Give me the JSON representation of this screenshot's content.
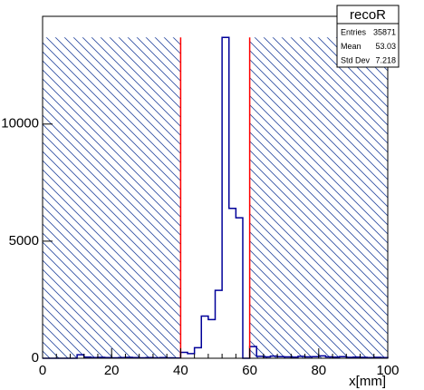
{
  "chart_data": {
    "type": "histogram",
    "bins": [
      0,
      2,
      4,
      6,
      8,
      10,
      12,
      14,
      16,
      18,
      20,
      22,
      24,
      26,
      28,
      30,
      32,
      34,
      36,
      38,
      40,
      42,
      44,
      46,
      48,
      50,
      52,
      54,
      56,
      58,
      60,
      62,
      64,
      66,
      68,
      70,
      72,
      74,
      76,
      78,
      80,
      82,
      84,
      86,
      88,
      90,
      92,
      94,
      96,
      98,
      100
    ],
    "values": [
      0,
      0,
      0,
      0,
      0,
      150,
      50,
      30,
      40,
      30,
      20,
      30,
      40,
      30,
      20,
      30,
      20,
      30,
      20,
      10,
      250,
      200,
      450,
      1800,
      1650,
      2900,
      13700,
      6400,
      6000,
      0,
      500,
      80,
      60,
      90,
      70,
      60,
      50,
      80,
      60,
      70,
      100,
      60,
      50,
      70,
      40,
      50,
      40,
      30,
      40,
      30
    ],
    "color": "#000099",
    "cut_lines": [
      40,
      60
    ],
    "cut_color": "#ff0000",
    "xlim": [
      0,
      100
    ],
    "xticks": [
      0,
      20,
      40,
      60,
      80,
      100
    ],
    "ylim": [
      0,
      14600
    ],
    "yticks": [
      0,
      5000,
      {
        "value": 10000,
        "label": "10000"
      }
    ],
    "xlabel": "x[mm]",
    "stats": {
      "name": "recoR",
      "rows": [
        [
          "Entries",
          "35871"
        ],
        [
          "Mean",
          "53.03"
        ],
        [
          "Std Dev",
          "7.218"
        ]
      ]
    }
  }
}
